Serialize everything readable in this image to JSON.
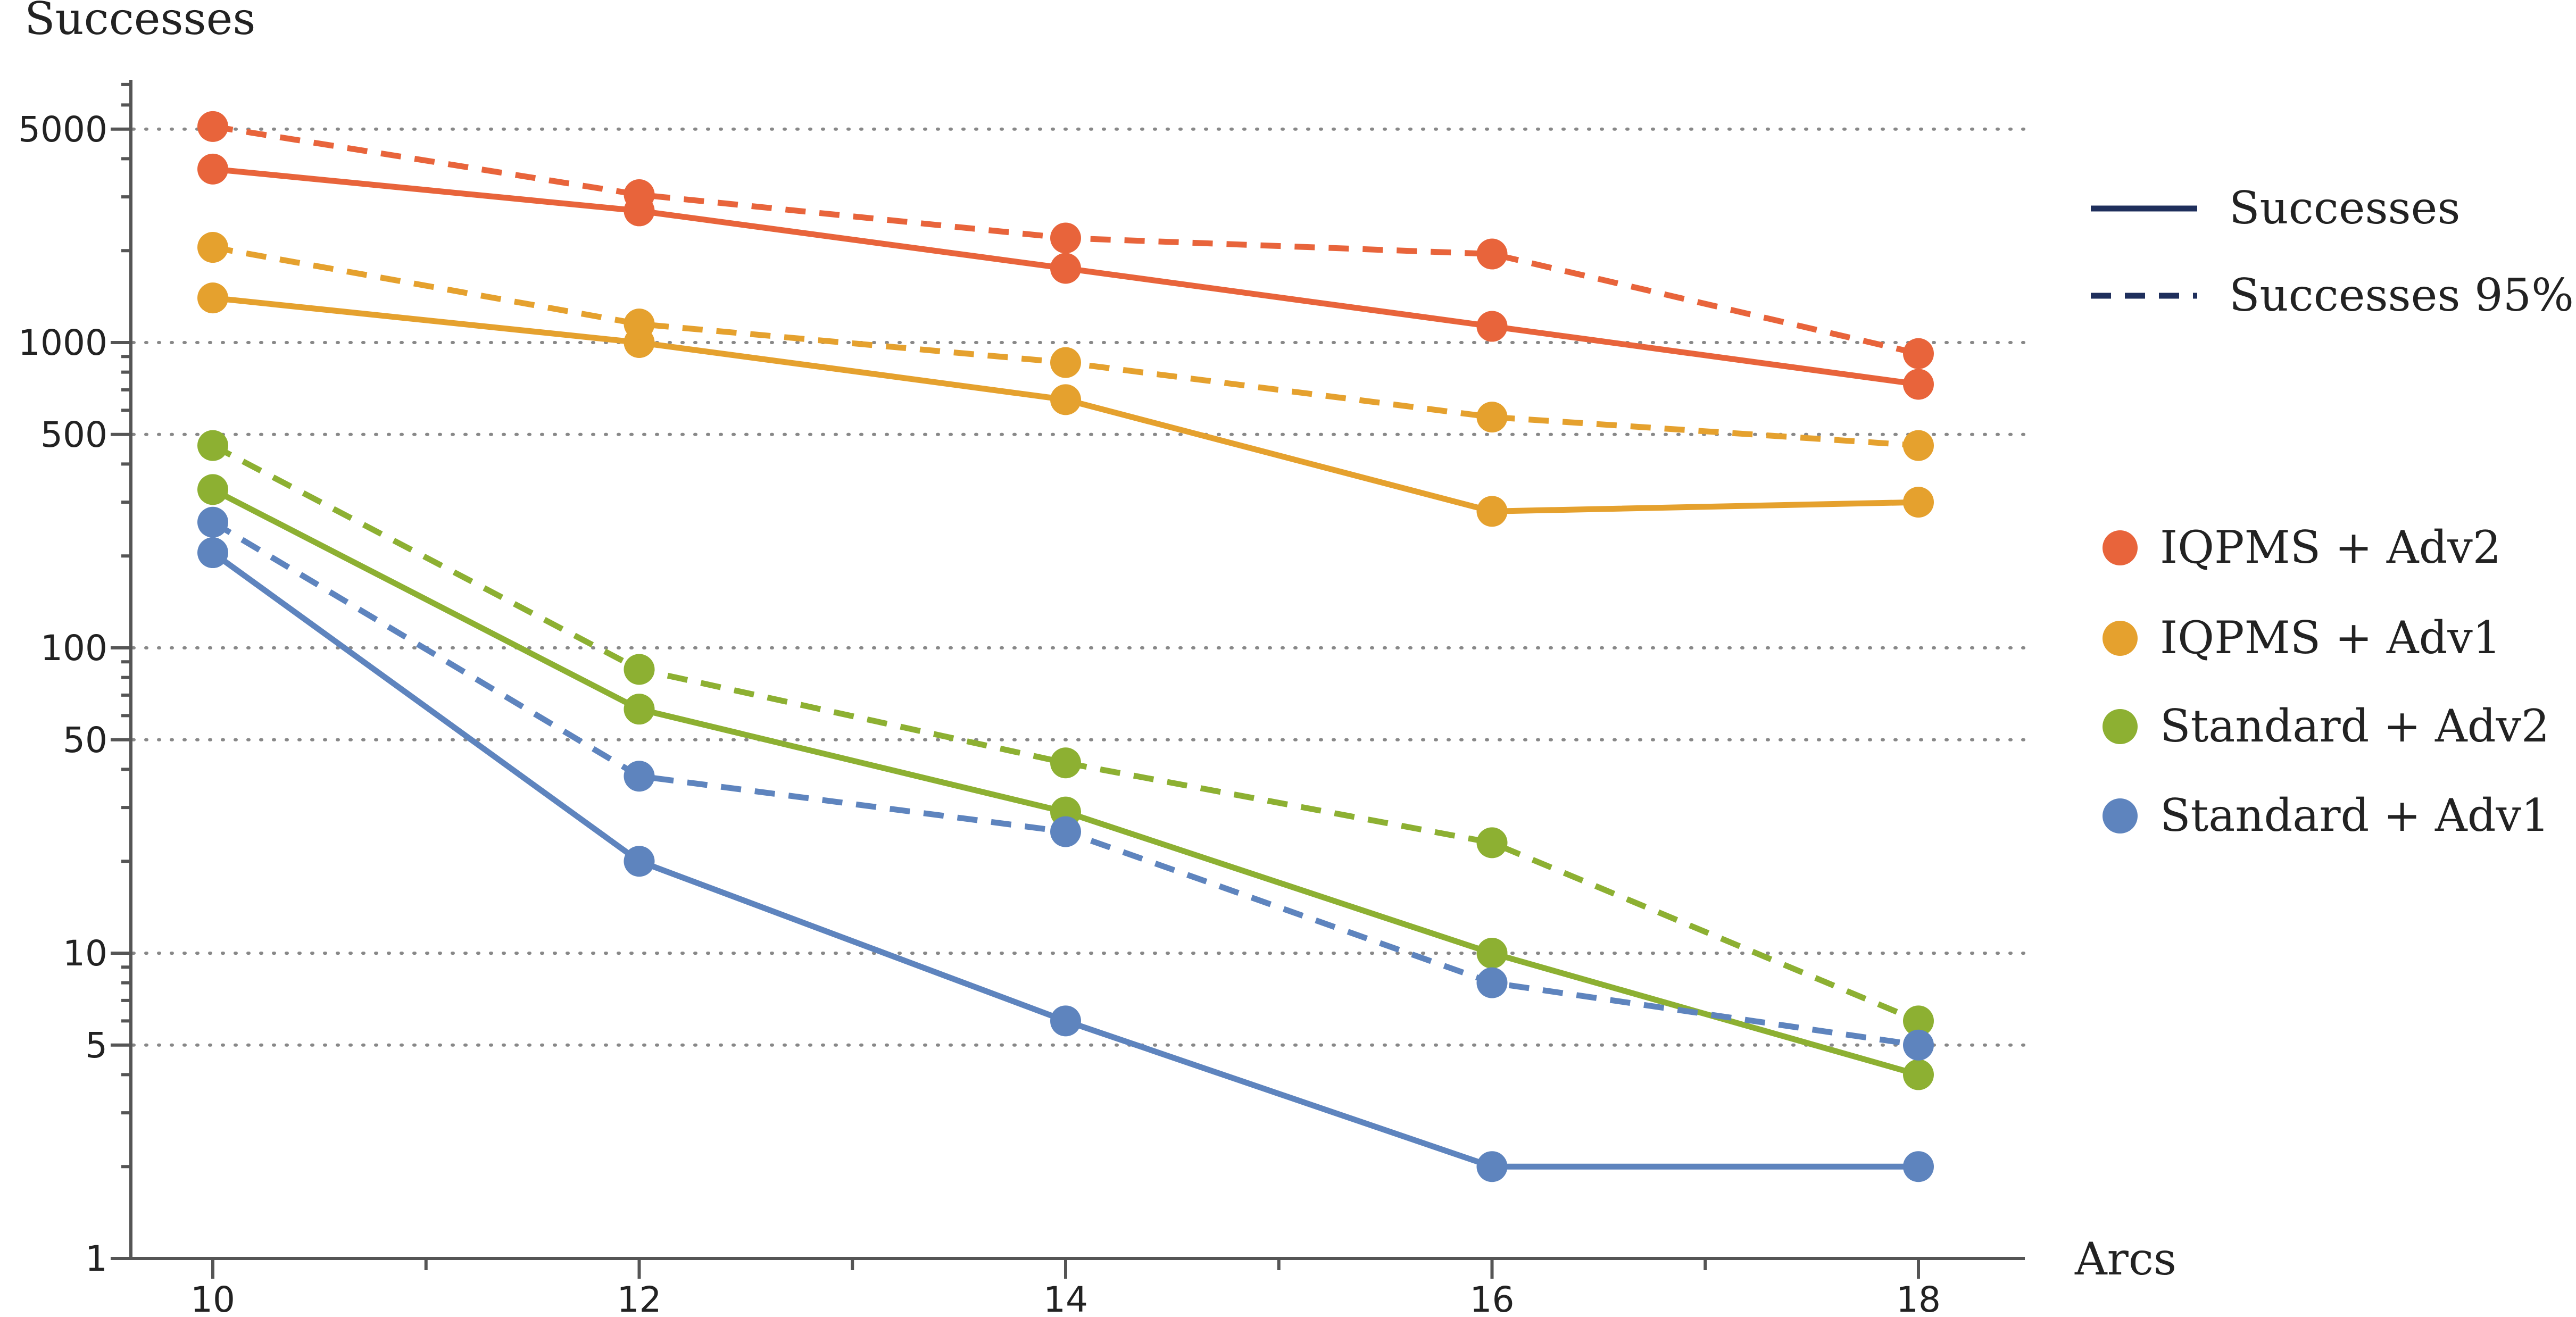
{
  "chart_data": {
    "type": "line",
    "xlabel": "Arcs",
    "ylabel": "Successes",
    "y_scale": "log",
    "ylim": [
      1,
      7500
    ],
    "xlim": [
      9.6,
      18.25
    ],
    "x": [
      10,
      12,
      14,
      16,
      18
    ],
    "x_ticks": [
      10,
      12,
      14,
      16,
      18
    ],
    "x_minor_ticks": [
      11,
      13,
      15,
      17
    ],
    "y_ticks": [
      1,
      5,
      10,
      50,
      100,
      500,
      1000,
      5000
    ],
    "y_gridlines": [
      5,
      10,
      50,
      100,
      500,
      1000,
      5000
    ],
    "grid": "horizontal dotted",
    "line_style_legend": [
      {
        "label": "Successes",
        "style": "solid"
      },
      {
        "label": "Successes 95%",
        "style": "dashed"
      }
    ],
    "series_legend": [
      {
        "label": "IQPMS + Adv2",
        "color": "#E8643B"
      },
      {
        "label": "IQPMS + Adv1",
        "color": "#E5A12E"
      },
      {
        "label": "Standard + Adv2",
        "color": "#8DB032"
      },
      {
        "label": "Standard + Adv1",
        "color": "#5E84BE"
      }
    ],
    "legend_position": "right",
    "series": [
      {
        "name": "IQPMS + Adv2",
        "style": "solid",
        "color": "#E8643B",
        "values": [
          3700,
          2700,
          1750,
          1130,
          730
        ]
      },
      {
        "name": "IQPMS + Adv2",
        "style": "dashed",
        "color": "#E8643B",
        "values": [
          5100,
          3050,
          2200,
          1950,
          920
        ]
      },
      {
        "name": "IQPMS + Adv1",
        "style": "solid",
        "color": "#E5A12E",
        "values": [
          1400,
          1000,
          650,
          280,
          300
        ]
      },
      {
        "name": "IQPMS + Adv1",
        "style": "dashed",
        "color": "#E5A12E",
        "values": [
          2050,
          1150,
          860,
          570,
          460
        ]
      },
      {
        "name": "Standard + Adv2",
        "style": "solid",
        "color": "#8DB032",
        "values": [
          330,
          63,
          29,
          10,
          4
        ]
      },
      {
        "name": "Standard + Adv2",
        "style": "dashed",
        "color": "#8DB032",
        "values": [
          460,
          85,
          42,
          23,
          6
        ]
      },
      {
        "name": "Standard + Adv1",
        "style": "solid",
        "color": "#5E84BE",
        "values": [
          205,
          20,
          6,
          2,
          2
        ]
      },
      {
        "name": "Standard + Adv1",
        "style": "dashed",
        "color": "#5E84BE",
        "values": [
          258,
          38,
          25,
          8,
          5
        ]
      }
    ]
  }
}
